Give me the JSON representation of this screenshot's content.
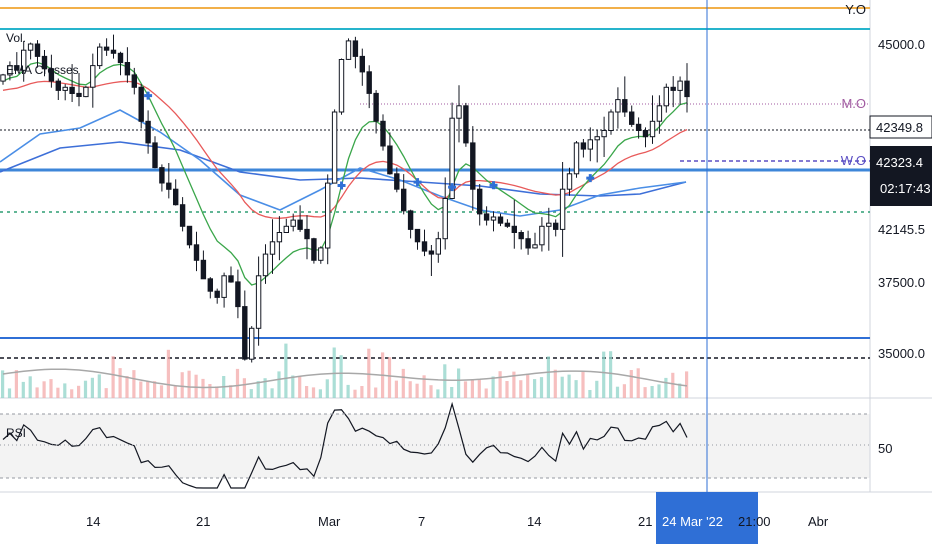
{
  "chart_data": {
    "type": "line",
    "legend_labels": {
      "vol": "Vol.",
      "ema": "EMA Crosses",
      "rsi": "RSI"
    },
    "price_scale": {
      "labels": [
        "45000.0",
        "42145.5",
        "37500.0",
        "35000.0"
      ]
    },
    "price_tags": [
      {
        "value": "42349.8",
        "color": "#131722"
      },
      {
        "value": "42323.4",
        "color": "#131722"
      },
      {
        "value": "02:17:43",
        "color": "#131722"
      }
    ],
    "level_labels": {
      "yearly_open": "Y.O",
      "monthly_open": "M.O",
      "weekly_open": "W.O"
    },
    "rsi_scale": {
      "labels": [
        "50"
      ]
    },
    "time_axis": {
      "labels": [
        "14",
        "21",
        "Mar",
        "7",
        "14",
        "21",
        "Abr"
      ],
      "crosshair_label": "24 Mar '22",
      "crosshair_time": "21:00"
    },
    "price_path": [
      44000,
      44300,
      44150,
      44800,
      45000,
      44600,
      44200,
      43800,
      43500,
      43600,
      43400,
      43300,
      43600,
      44300,
      44900,
      44800,
      44700,
      44400,
      44000,
      43600,
      42500,
      41800,
      41000,
      40500,
      40300,
      39800,
      39100,
      38500,
      38000,
      37400,
      37000,
      36800,
      37500,
      37300,
      36500,
      34800,
      35800,
      37500,
      38200,
      38600,
      38900,
      39100,
      39300,
      39000,
      38700,
      38000,
      38400,
      40500,
      42800,
      44500,
      45100,
      44600,
      44100,
      43400,
      42500,
      41700,
      40800,
      40300,
      39600,
      39000,
      38600,
      38300,
      38200,
      38700,
      40000,
      42600,
      43000,
      41800,
      40300,
      39500,
      39300,
      39400,
      39200,
      39100,
      38900,
      38700,
      38400,
      38500,
      39100,
      39200,
      39000,
      40300,
      40800,
      41800,
      41600,
      41900,
      42000,
      42200,
      42800,
      43200,
      42800,
      42400,
      42200,
      42000,
      42500,
      43000,
      43600,
      43500,
      43800,
      43300
    ],
    "ema_fast": [
      43800,
      43900,
      43950,
      44150,
      44350,
      44400,
      44330,
      44180,
      44010,
      43900,
      43800,
      43700,
      43680,
      43820,
      44060,
      44210,
      44310,
      44340,
      44260,
      44090,
      43720,
      43330,
      42870,
      42410,
      42010,
      41560,
      41040,
      40520,
      40000,
      39480,
      39010,
      38620,
      38440,
      38250,
      37980,
      37440,
      37200,
      37270,
      37450,
      37660,
      37880,
      38080,
      38270,
      38360,
      38400,
      38330,
      38340,
      38770,
      39530,
      40420,
      41290,
      41900,
      42300,
      42480,
      42500,
      42340,
      42060,
      41740,
      41360,
      40940,
      40530,
      40150,
      39820,
      39640,
      39750,
      40370,
      40920,
      41120,
      41010,
      40800,
      40590,
      40430,
      40270,
      40120,
      39970,
      39810,
      39650,
      39530,
      39510,
      39480,
      39410,
      39580,
      39780,
      40130,
      40400,
      40660,
      40880,
      41100,
      41390,
      41700,
      41890,
      41970,
      42010,
      42000,
      42120,
      42320,
      42600,
      42810,
      43040,
      43100
    ],
    "ema_slow": [
      43500,
      43540,
      43570,
      43640,
      43720,
      43770,
      43790,
      43780,
      43750,
      43720,
      43680,
      43640,
      43600,
      43610,
      43660,
      43710,
      43750,
      43780,
      43790,
      43770,
      43680,
      43550,
      43370,
      43170,
      42970,
      42740,
      42480,
      42200,
      41900,
      41580,
      41260,
      40950,
      40710,
      40470,
      40210,
      39880,
      39640,
      39490,
      39410,
      39370,
      39360,
      39380,
      39420,
      39440,
      39440,
      39410,
      39400,
      39490,
      39720,
      40040,
      40390,
      40680,
      40920,
      41080,
      41170,
      41200,
      41160,
      41080,
      40950,
      40780,
      40580,
      40370,
      40170,
      40030,
      40000,
      40180,
      40390,
      40530,
      40580,
      40580,
      40560,
      40540,
      40510,
      40470,
      40420,
      40360,
      40290,
      40230,
      40190,
      40150,
      40110,
      40130,
      40190,
      40320,
      40440,
      40570,
      40690,
      40810,
      40960,
      41140,
      41270,
      41370,
      41440,
      41500,
      41580,
      41700,
      41850,
      41990,
      42130,
      42230
    ]
  }
}
